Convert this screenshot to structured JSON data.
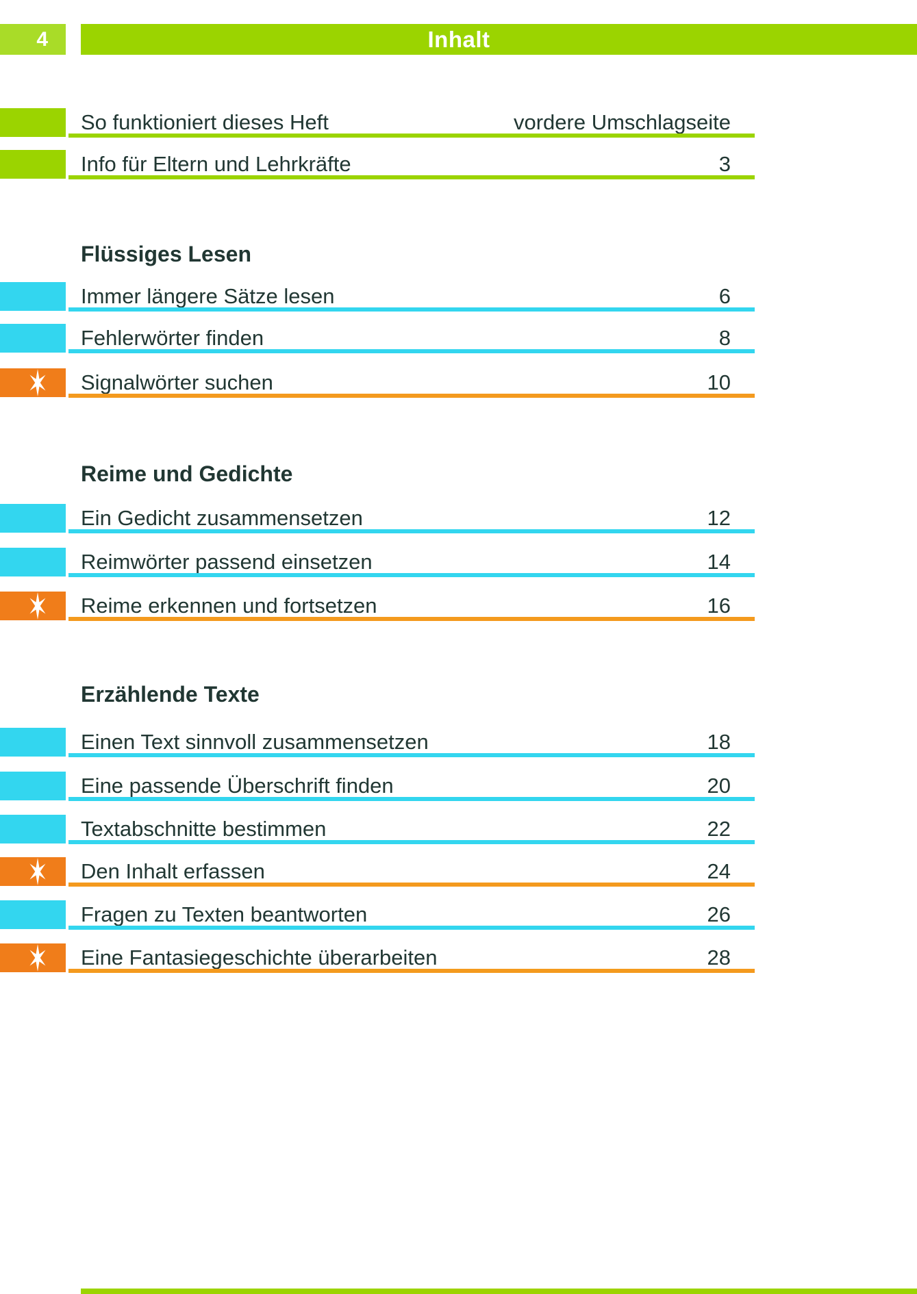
{
  "header": {
    "page_number": "4",
    "title": "Inhalt"
  },
  "colors": {
    "green": "#9bd400",
    "green_light": "#a9dc28",
    "cyan": "#33d6ef",
    "orange": "#f07d1a",
    "orange_underline": "#f49a1e",
    "text": "#213733"
  },
  "star_icon": "six-point-sparkle-star",
  "sections": [
    {
      "heading": "",
      "entries": [
        {
          "label": "So funktioniert dieses Heft",
          "page": "vordere Umschlagseite",
          "type": "green",
          "star": false
        },
        {
          "label": "Info für Eltern und Lehrkräfte",
          "page": "3",
          "type": "green",
          "star": false
        }
      ]
    },
    {
      "heading": "Flüssiges Lesen",
      "entries": [
        {
          "label": "Immer längere Sätze lesen",
          "page": "6",
          "type": "cyan",
          "star": false
        },
        {
          "label": "Fehlerwörter finden",
          "page": "8",
          "type": "cyan",
          "star": false
        },
        {
          "label": "Signalwörter suchen",
          "page": "10",
          "type": "orange",
          "star": true
        }
      ]
    },
    {
      "heading": "Reime und Gedichte",
      "entries": [
        {
          "label": "Ein Gedicht zusammensetzen",
          "page": "12",
          "type": "cyan",
          "star": false
        },
        {
          "label": "Reimwörter passend einsetzen",
          "page": "14",
          "type": "cyan",
          "star": false
        },
        {
          "label": "Reime erkennen und fortsetzen",
          "page": "16",
          "type": "orange",
          "star": true
        }
      ]
    },
    {
      "heading": "Erzählende Texte",
      "entries": [
        {
          "label": "Einen Text sinnvoll zusammensetzen",
          "page": "18",
          "type": "cyan",
          "star": false
        },
        {
          "label": "Eine passende Überschrift finden",
          "page": "20",
          "type": "cyan",
          "star": false
        },
        {
          "label": "Textabschnitte bestimmen",
          "page": "22",
          "type": "cyan",
          "star": false
        },
        {
          "label": "Den Inhalt erfassen",
          "page": "24",
          "type": "orange",
          "star": true
        },
        {
          "label": "Fragen zu Texten beantworten",
          "page": "26",
          "type": "cyan",
          "star": false
        },
        {
          "label": "Eine Fantasiegeschichte überarbeiten",
          "page": "28",
          "type": "orange",
          "star": true
        }
      ]
    }
  ]
}
